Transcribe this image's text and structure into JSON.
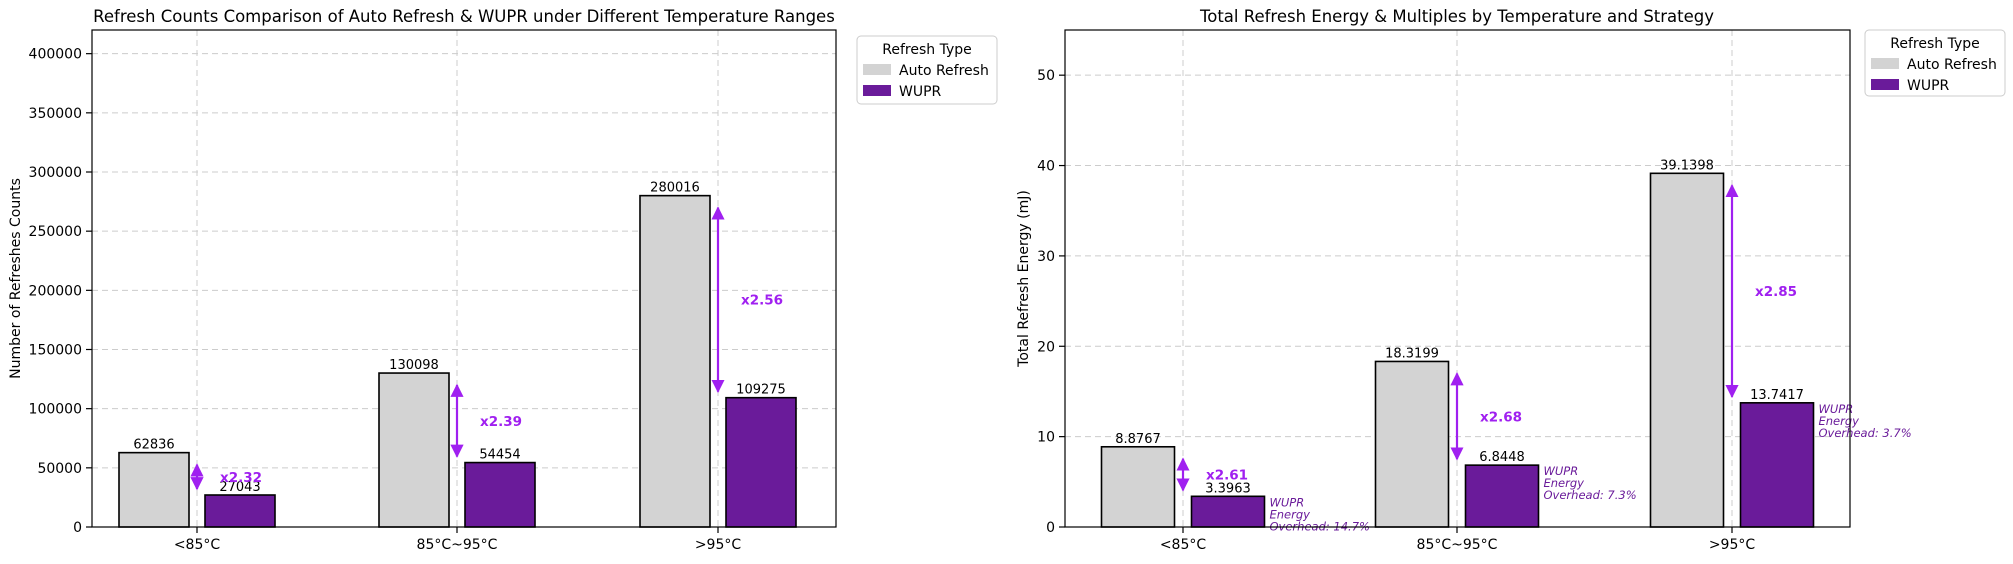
{
  "colors": {
    "auto": "#d3d3d3",
    "wupr": "#6a1b9a",
    "multiplier": "#a020f0",
    "annotation": "#6a1b9a"
  },
  "chart_data": [
    {
      "type": "bar",
      "title": "Refresh Counts Comparison of Auto Refresh & WUPR under Different Temperature Ranges",
      "xlabel": "",
      "ylabel": "Number of Refreshes Counts",
      "categories": [
        "<85°C",
        "85°C~95°C",
        ">95°C"
      ],
      "ylim": [
        0,
        420000
      ],
      "yticks": [
        0,
        50000,
        100000,
        150000,
        200000,
        250000,
        300000,
        350000,
        400000
      ],
      "ytick_labels": [
        "0",
        "50000",
        "100000",
        "150000",
        "200000",
        "250000",
        "300000",
        "350000",
        "400000"
      ],
      "series": [
        {
          "name": "Auto Refresh",
          "values": [
            62836,
            130098,
            280016
          ],
          "labels": [
            "62836",
            "130098",
            "280016"
          ]
        },
        {
          "name": "WUPR",
          "values": [
            27043,
            54454,
            109275
          ],
          "labels": [
            "27043",
            "54454",
            "109275"
          ]
        }
      ],
      "multipliers": [
        "x2.32",
        "x2.39",
        "x2.56"
      ],
      "annotations": [],
      "legend": {
        "title": "Refresh Type",
        "placement": "outside-top-right"
      },
      "grid": true
    },
    {
      "type": "bar",
      "title": "Total Refresh Energy & Multiples by Temperature and Strategy",
      "xlabel": "",
      "ylabel": "Total Refresh Energy (mJ)",
      "categories": [
        "<85°C",
        "85°C~95°C",
        ">95°C"
      ],
      "ylim": [
        0,
        55
      ],
      "yticks": [
        0,
        10,
        20,
        30,
        40,
        50
      ],
      "ytick_labels": [
        "0",
        "10",
        "20",
        "30",
        "40",
        "50"
      ],
      "series": [
        {
          "name": "Auto Refresh",
          "values": [
            8.8767,
            18.3199,
            39.1398
          ],
          "labels": [
            "8.8767",
            "18.3199",
            "39.1398"
          ]
        },
        {
          "name": "WUPR",
          "values": [
            3.3963,
            6.8448,
            13.7417
          ],
          "labels": [
            "3.3963",
            "6.8448",
            "13.7417"
          ]
        }
      ],
      "multipliers": [
        "x2.61",
        "x2.68",
        "x2.85"
      ],
      "annotations": [
        [
          "WUPR",
          "Energy",
          "Overhead: 14.7%"
        ],
        [
          "WUPR",
          "Energy",
          "Overhead: 7.3%"
        ],
        [
          "WUPR",
          "Energy",
          "Overhead: 3.7%"
        ]
      ],
      "legend": {
        "title": "Refresh Type",
        "placement": "outside-top-right"
      },
      "grid": true
    }
  ]
}
